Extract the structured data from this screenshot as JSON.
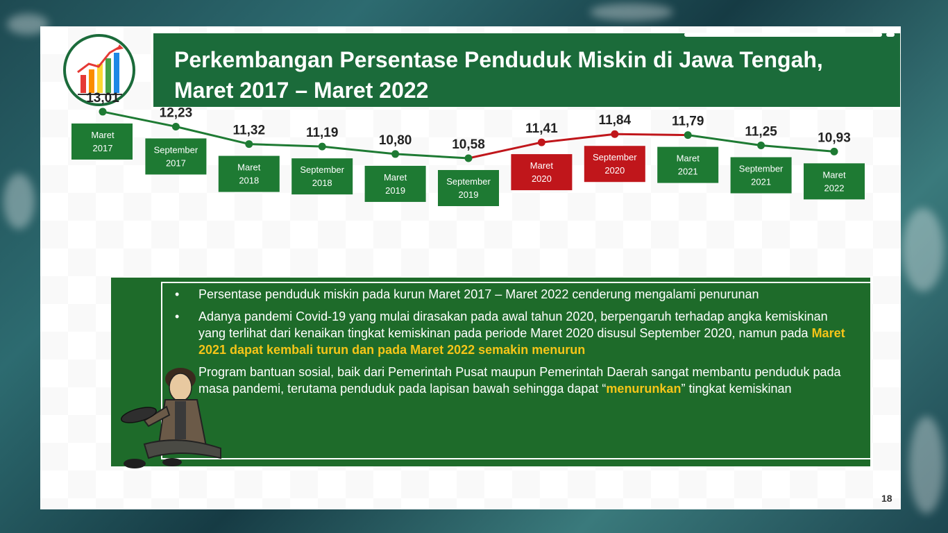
{
  "slide": {
    "title": "Perkembangan Persentase Penduduk Miskin di Jawa Tengah,\nMaret 2017 – Maret 2022",
    "page_number": "18"
  },
  "chart_data": {
    "type": "line",
    "title": "",
    "categories": [
      "Maret 2017",
      "September 2017",
      "Maret 2018",
      "September 2018",
      "Maret 2019",
      "September 2019",
      "Maret 2020",
      "September 2020",
      "Maret 2021",
      "September 2021",
      "Maret 2022"
    ],
    "value_labels": [
      "13,01",
      "12,23",
      "11,32",
      "11,19",
      "10,80",
      "10,58",
      "11,41",
      "11,84",
      "11,79",
      "11,25",
      "10,93"
    ],
    "values": [
      13.01,
      12.23,
      11.32,
      11.19,
      10.8,
      10.58,
      11.41,
      11.84,
      11.79,
      11.25,
      10.93
    ],
    "label_lines": [
      [
        "Maret",
        "2017"
      ],
      [
        "September",
        "2017"
      ],
      [
        "Maret",
        "2018"
      ],
      [
        "September",
        "2018"
      ],
      [
        "Maret",
        "2019"
      ],
      [
        "September",
        "2019"
      ],
      [
        "Maret",
        "2020"
      ],
      [
        "September",
        "2020"
      ],
      [
        "Maret",
        "2021"
      ],
      [
        "September",
        "2021"
      ],
      [
        "Maret",
        "2022"
      ]
    ],
    "highlight_points": [
      6,
      7
    ],
    "colors": {
      "normal": "#1e7a33",
      "highlight": "#c0161b",
      "line_normal": "#1e7a33",
      "line_highlight": "#c0161b"
    },
    "ylim": [
      10.0,
      13.5
    ]
  },
  "info": {
    "bullet_symbol": "•",
    "b1": "Persentase penduduk miskin pada kurun Maret 2017 – Maret 2022 cenderung mengalami penurunan",
    "b2_pre": "Adanya pandemi Covid-19 yang mulai dirasakan pada awal tahun 2020, berpengaruh terhadap angka kemiskinan yang terlihat dari kenaikan tingkat kemiskinan pada periode Maret 2020 disusul September 2020, namun pada ",
    "b2_hl": "Maret 2021 dapat kembali turun dan pada Maret 2022 semakin menurun",
    "b3_pre": "Program bantuan sosial, baik dari Pemerintah Pusat maupun Pemerintah Daerah sangat membantu penduduk pada masa pandemi, terutama penduduk pada lapisan bawah sehingga dapat “",
    "b3_hl": "menurunkan",
    "b3_post": "” tingkat kemiskinan"
  },
  "icons": {
    "logo": "bar-chart-icon",
    "illustration": "beggar-illustration"
  }
}
